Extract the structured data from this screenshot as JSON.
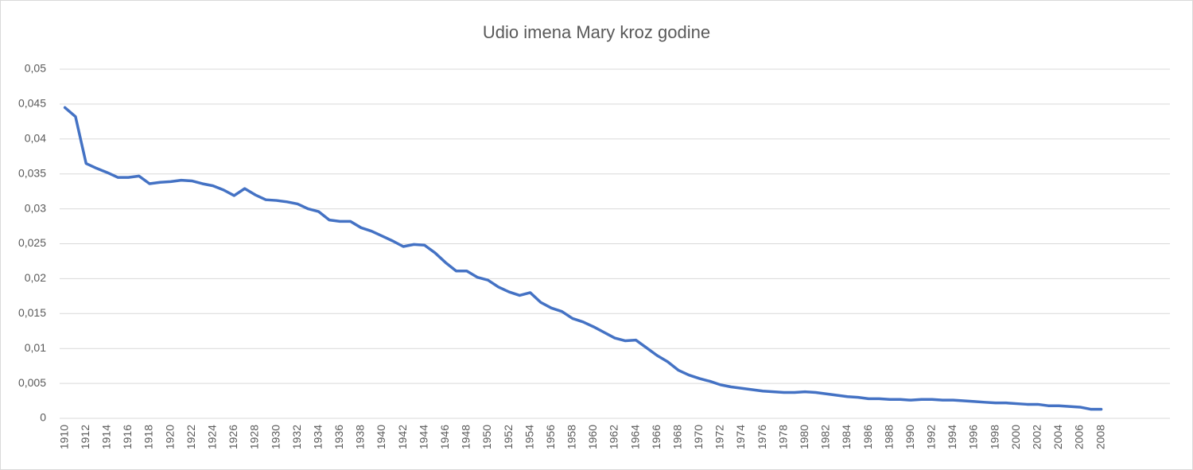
{
  "chart_data": {
    "type": "line",
    "title": "Udio imena Mary kroz godine",
    "categories": [
      "1910",
      null,
      "1912",
      null,
      "1914",
      null,
      "1916",
      null,
      "1918",
      null,
      "1920",
      null,
      "1922",
      null,
      "1924",
      null,
      "1926",
      null,
      "1928",
      null,
      "1930",
      null,
      "1932",
      null,
      "1934",
      null,
      "1936",
      null,
      "1938",
      null,
      "1940",
      null,
      "1942",
      null,
      "1944",
      null,
      "1946",
      null,
      "1948",
      null,
      "1950",
      null,
      "1952",
      null,
      "1954",
      null,
      "1956",
      null,
      "1958",
      null,
      "1960",
      null,
      "1962",
      null,
      "1964",
      null,
      "1966",
      null,
      "1968",
      null,
      "1970",
      null,
      "1972",
      null,
      "1974",
      null,
      "1976",
      null,
      "1978",
      null,
      "1980",
      null,
      "1982",
      null,
      "1984",
      null,
      "1986",
      null,
      "1988",
      null,
      "1990",
      null,
      "1992",
      null,
      "1994",
      null,
      "1996",
      null,
      "1998",
      null,
      "2000",
      null,
      "2002",
      null,
      "2004",
      null,
      "2006",
      null,
      "2008",
      null,
      null,
      null,
      null,
      null,
      null
    ],
    "values": [
      0.0445,
      0.0432,
      0.0365,
      0.0358,
      0.0352,
      0.0345,
      0.0345,
      0.0347,
      0.0336,
      0.0338,
      0.0339,
      0.0341,
      0.034,
      0.0336,
      0.0333,
      0.0327,
      0.0319,
      0.0329,
      0.032,
      0.0313,
      0.0312,
      0.031,
      0.0307,
      0.03,
      0.0296,
      0.0284,
      0.0282,
      0.0282,
      0.0273,
      0.0268,
      0.0261,
      0.0254,
      0.0246,
      0.0249,
      0.0248,
      0.0237,
      0.0223,
      0.0211,
      0.0211,
      0.0202,
      0.0198,
      0.0188,
      0.0181,
      0.0176,
      0.018,
      0.0166,
      0.0158,
      0.0153,
      0.0143,
      0.0138,
      0.0131,
      0.0123,
      0.0115,
      0.0111,
      0.0112,
      0.0101,
      0.009,
      0.0081,
      0.0069,
      0.0062,
      0.0057,
      0.0053,
      0.0048,
      0.0045,
      0.0043,
      0.0041,
      0.0039,
      0.0038,
      0.0037,
      0.0037,
      0.0038,
      0.0037,
      0.0035,
      0.0033,
      0.0031,
      0.003,
      0.0028,
      0.0028,
      0.0027,
      0.0027,
      0.0026,
      0.0027,
      0.0027,
      0.0026,
      0.0026,
      0.0025,
      0.0024,
      0.0023,
      0.0022,
      0.0022,
      0.0021,
      0.002,
      0.002,
      0.0018,
      0.0018,
      0.0017,
      0.0016,
      0.0013,
      0.0013,
      null,
      null,
      null,
      null,
      null,
      null
    ],
    "color": "#4472c4",
    "ylim": [
      0,
      0.05
    ],
    "yticks": [
      0,
      {
        "value": 0.005,
        "label": "0,005"
      },
      {
        "value": 0.01,
        "label": "0,01"
      },
      {
        "value": 0.015,
        "label": "0,015"
      },
      {
        "value": 0.02,
        "label": "0,02"
      },
      {
        "value": 0.025,
        "label": "0,025"
      },
      {
        "value": 0.03,
        "label": "0,03"
      },
      {
        "value": 0.035,
        "label": "0,035"
      },
      {
        "value": 0.04,
        "label": "0,04"
      },
      {
        "value": 0.045,
        "label": "0,045"
      },
      {
        "value": 0.05,
        "label": "0,05"
      }
    ],
    "grid": true
  }
}
